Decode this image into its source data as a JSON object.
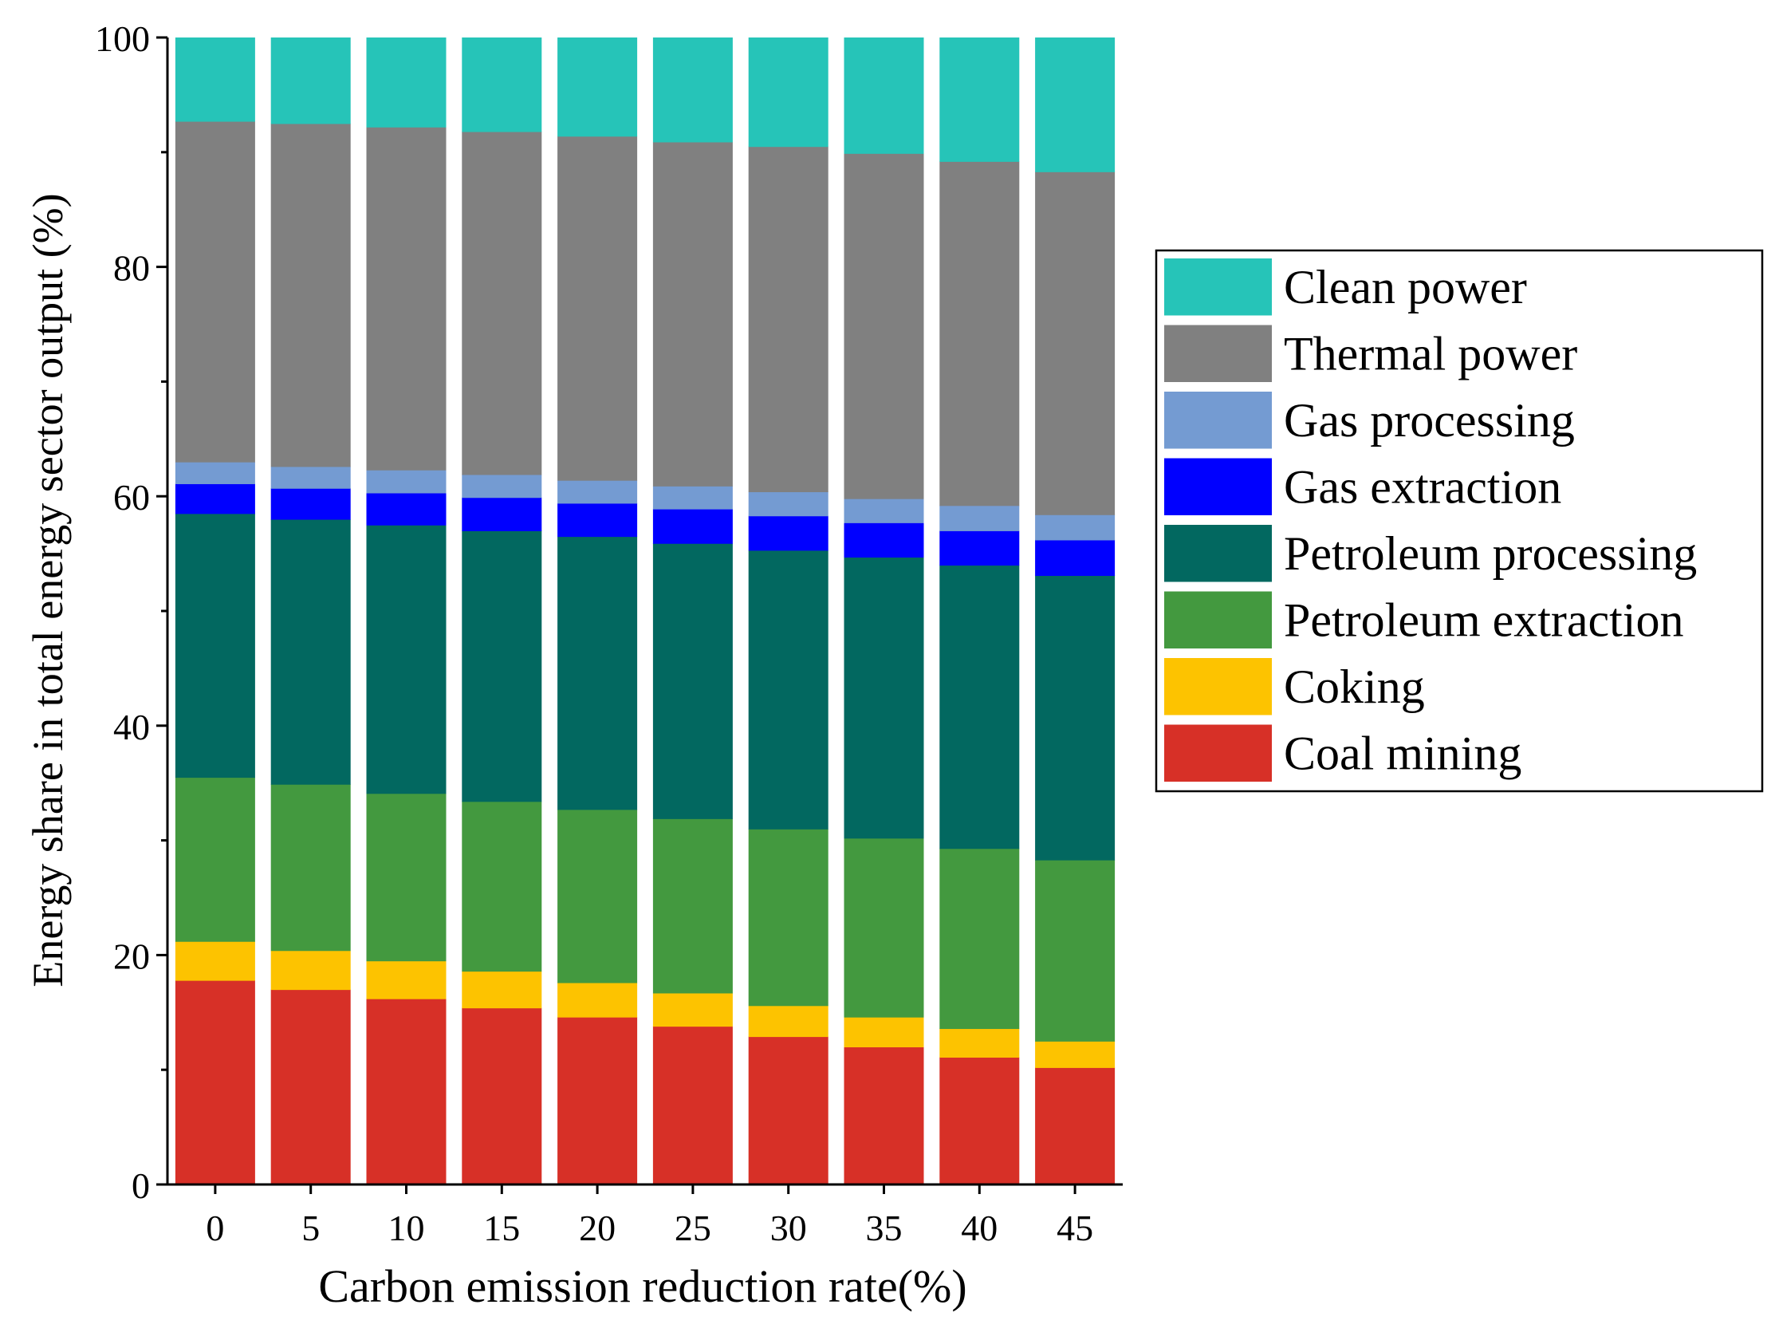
{
  "chart_data": {
    "type": "bar",
    "stacked": true,
    "title": "",
    "xlabel": "Carbon emission reduction rate(%)",
    "ylabel": "Energy share in total energy sector output (%)",
    "ylim": [
      0,
      100
    ],
    "yticks": [
      0,
      20,
      40,
      60,
      80,
      100
    ],
    "grid": false,
    "legend_position": "right",
    "categories": [
      "0",
      "5",
      "10",
      "15",
      "20",
      "25",
      "30",
      "35",
      "40",
      "45"
    ],
    "series": [
      {
        "name": "Coal mining",
        "color": "#d73027",
        "values": [
          17.8,
          17.0,
          16.2,
          15.4,
          14.6,
          13.8,
          12.9,
          12.0,
          11.1,
          10.2
        ]
      },
      {
        "name": "Coking",
        "color": "#fdc300",
        "values": [
          3.4,
          3.4,
          3.3,
          3.2,
          3.0,
          2.9,
          2.7,
          2.6,
          2.5,
          2.3
        ]
      },
      {
        "name": "Petroleum extraction",
        "color": "#43993f",
        "values": [
          14.3,
          14.5,
          14.6,
          14.8,
          15.1,
          15.2,
          15.4,
          15.6,
          15.7,
          15.8
        ]
      },
      {
        "name": "Petroleum processing",
        "color": "#026860",
        "values": [
          23.0,
          23.1,
          23.4,
          23.6,
          23.8,
          24.0,
          24.3,
          24.5,
          24.7,
          24.8
        ]
      },
      {
        "name": "Gas extraction",
        "color": "#0000ff",
        "values": [
          2.6,
          2.7,
          2.8,
          2.9,
          2.9,
          3.0,
          3.0,
          3.0,
          3.0,
          3.1
        ]
      },
      {
        "name": "Gas processing",
        "color": "#749bd2",
        "values": [
          1.9,
          1.9,
          2.0,
          2.0,
          2.0,
          2.0,
          2.1,
          2.1,
          2.2,
          2.2
        ]
      },
      {
        "name": "Thermal power",
        "color": "#808080",
        "values": [
          29.7,
          29.9,
          29.9,
          29.9,
          30.0,
          30.0,
          30.1,
          30.1,
          30.0,
          29.9
        ]
      },
      {
        "name": "Clean power",
        "color": "#26c4b8",
        "values": [
          7.3,
          7.5,
          7.8,
          8.2,
          8.6,
          9.1,
          9.5,
          10.1,
          10.8,
          11.7
        ]
      }
    ]
  }
}
